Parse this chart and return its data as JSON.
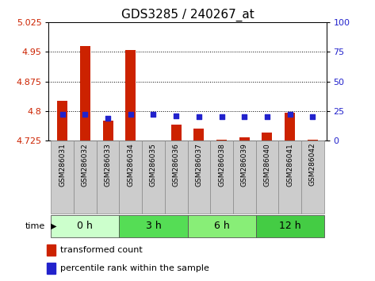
{
  "title": "GDS3285 / 240267_at",
  "samples": [
    "GSM286031",
    "GSM286032",
    "GSM286033",
    "GSM286034",
    "GSM286035",
    "GSM286036",
    "GSM286037",
    "GSM286038",
    "GSM286039",
    "GSM286040",
    "GSM286041",
    "GSM286042"
  ],
  "red_values": [
    4.825,
    4.965,
    4.775,
    4.955,
    4.725,
    4.765,
    4.755,
    4.728,
    4.733,
    4.745,
    4.795,
    4.728
  ],
  "blue_values": [
    22,
    22,
    19,
    22,
    22,
    21,
    20,
    20,
    20,
    20,
    22,
    20
  ],
  "ylim_left": [
    4.725,
    5.025
  ],
  "ylim_right": [
    0,
    100
  ],
  "yticks_left": [
    4.725,
    4.8,
    4.875,
    4.95,
    5.025
  ],
  "yticks_left_labels": [
    "4.725",
    "4.8",
    "4.875",
    "4.95",
    "5.025"
  ],
  "yticks_right": [
    0,
    25,
    50,
    75,
    100
  ],
  "yticks_right_labels": [
    "0",
    "25",
    "50",
    "75",
    "100"
  ],
  "time_groups": [
    {
      "label": "0 h",
      "start": 0,
      "end": 2,
      "color": "#ccffcc"
    },
    {
      "label": "3 h",
      "start": 3,
      "end": 5,
      "color": "#55dd55"
    },
    {
      "label": "6 h",
      "start": 6,
      "end": 8,
      "color": "#88ee77"
    },
    {
      "label": "12 h",
      "start": 9,
      "end": 11,
      "color": "#44cc44"
    }
  ],
  "bar_color": "#cc2200",
  "square_color": "#2222cc",
  "baseline": 4.725,
  "title_fontsize": 11,
  "tick_fontsize": 8,
  "sample_fontsize": 6.5,
  "group_fontsize": 9,
  "legend_fontsize": 8
}
